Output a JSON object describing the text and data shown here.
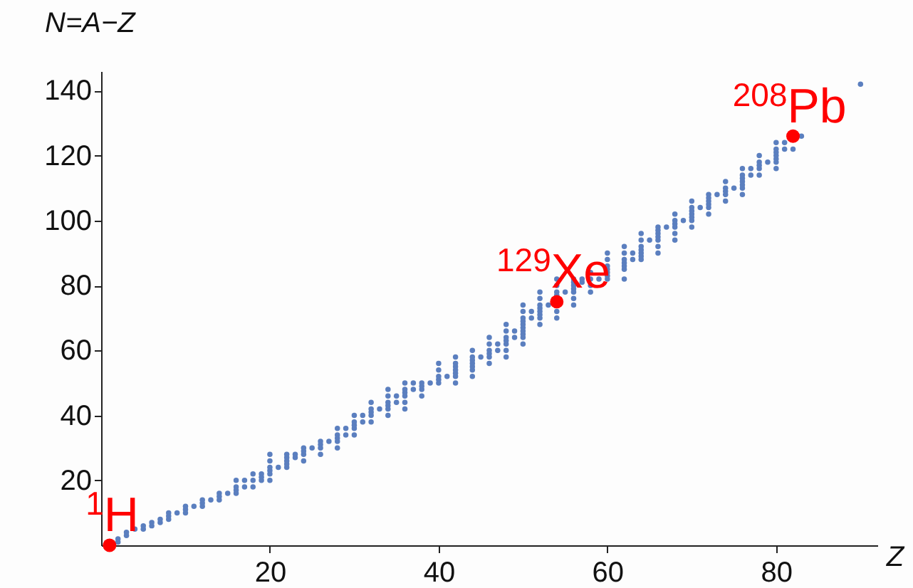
{
  "chart_data": {
    "type": "scatter",
    "xlabel": "Z",
    "ylabel": "N=A−Z",
    "xlim": [
      0,
      92
    ],
    "ylim": [
      0,
      146
    ],
    "xticks": [
      20,
      40,
      60,
      80
    ],
    "yticks": [
      20,
      40,
      60,
      80,
      100,
      120,
      140
    ],
    "grid": false,
    "marker": "circle",
    "series": [
      {
        "color": "#5b7fbf",
        "x": [
          2,
          2,
          3,
          3,
          4,
          5,
          5,
          6,
          6,
          7,
          7,
          8,
          8,
          8,
          9,
          10,
          10,
          10,
          11,
          12,
          12,
          12,
          13,
          14,
          14,
          14,
          15,
          16,
          16,
          16,
          16,
          17,
          17,
          18,
          18,
          18,
          19,
          19,
          19,
          20,
          20,
          20,
          20,
          20,
          20,
          21,
          22,
          22,
          22,
          22,
          22,
          23,
          23,
          24,
          24,
          24,
          24,
          25,
          26,
          26,
          26,
          26,
          27,
          28,
          28,
          28,
          28,
          28,
          29,
          29,
          30,
          30,
          30,
          30,
          30,
          31,
          31,
          32,
          32,
          32,
          32,
          32,
          33,
          34,
          34,
          34,
          34,
          34,
          34,
          35,
          35,
          36,
          36,
          36,
          36,
          36,
          36,
          37,
          37,
          38,
          38,
          38,
          38,
          39,
          40,
          40,
          40,
          40,
          40,
          41,
          42,
          42,
          42,
          42,
          42,
          42,
          42,
          44,
          44,
          44,
          44,
          44,
          44,
          44,
          45,
          46,
          46,
          46,
          46,
          46,
          46,
          47,
          47,
          48,
          48,
          48,
          48,
          48,
          48,
          48,
          49,
          49,
          50,
          50,
          50,
          50,
          50,
          50,
          50,
          50,
          50,
          50,
          51,
          51,
          52,
          52,
          52,
          52,
          52,
          52,
          52,
          52,
          53,
          54,
          54,
          54,
          54,
          54,
          54,
          55,
          56,
          56,
          56,
          56,
          56,
          56,
          56,
          57,
          57,
          58,
          58,
          58,
          58,
          59,
          60,
          60,
          60,
          60,
          60,
          60,
          60,
          62,
          62,
          62,
          62,
          62,
          62,
          62,
          63,
          63,
          64,
          64,
          64,
          64,
          64,
          64,
          64,
          65,
          66,
          66,
          66,
          66,
          66,
          66,
          66,
          67,
          68,
          68,
          68,
          68,
          68,
          68,
          69,
          70,
          70,
          70,
          70,
          70,
          70,
          70,
          71,
          72,
          72,
          72,
          72,
          72,
          72,
          73,
          74,
          74,
          74,
          74,
          74,
          75,
          76,
          76,
          76,
          76,
          76,
          76,
          76,
          77,
          77,
          78,
          78,
          78,
          78,
          78,
          79,
          80,
          80,
          80,
          80,
          80,
          80,
          80,
          81,
          81,
          82,
          83,
          90
        ],
        "values": [
          1,
          2,
          3,
          4,
          5,
          5,
          6,
          6,
          7,
          7,
          8,
          8,
          9,
          10,
          10,
          10,
          11,
          12,
          12,
          12,
          13,
          14,
          14,
          14,
          15,
          16,
          16,
          16,
          17,
          18,
          20,
          18,
          20,
          18,
          20,
          22,
          20,
          21,
          22,
          20,
          22,
          23,
          24,
          26,
          28,
          24,
          24,
          25,
          26,
          27,
          28,
          27,
          28,
          26,
          28,
          29,
          30,
          30,
          28,
          30,
          31,
          32,
          32,
          30,
          32,
          33,
          34,
          36,
          34,
          36,
          34,
          36,
          37,
          38,
          40,
          38,
          40,
          38,
          40,
          41,
          42,
          44,
          42,
          40,
          42,
          43,
          44,
          46,
          48,
          44,
          46,
          42,
          44,
          46,
          47,
          48,
          50,
          48,
          50,
          46,
          48,
          49,
          50,
          50,
          50,
          51,
          52,
          54,
          56,
          52,
          50,
          52,
          53,
          54,
          55,
          56,
          58,
          52,
          54,
          55,
          56,
          57,
          58,
          60,
          58,
          56,
          58,
          59,
          60,
          62,
          64,
          60,
          62,
          58,
          60,
          62,
          63,
          64,
          66,
          68,
          64,
          66,
          62,
          64,
          65,
          66,
          67,
          68,
          69,
          70,
          72,
          74,
          70,
          72,
          68,
          70,
          71,
          72,
          73,
          74,
          76,
          78,
          74,
          70,
          72,
          77,
          78,
          80,
          82,
          78,
          74,
          76,
          78,
          79,
          80,
          81,
          82,
          81,
          82,
          78,
          80,
          82,
          84,
          82,
          82,
          83,
          84,
          85,
          86,
          88,
          90,
          82,
          85,
          86,
          87,
          88,
          90,
          92,
          88,
          90,
          88,
          89,
          90,
          91,
          92,
          94,
          96,
          94,
          90,
          92,
          94,
          95,
          96,
          97,
          98,
          98,
          94,
          96,
          98,
          99,
          100,
          102,
          100,
          98,
          100,
          101,
          102,
          103,
          104,
          106,
          104,
          102,
          104,
          105,
          106,
          107,
          108,
          108,
          106,
          108,
          109,
          110,
          112,
          110,
          108,
          110,
          111,
          112,
          113,
          114,
          116,
          114,
          116,
          114,
          116,
          117,
          118,
          120,
          118,
          116,
          118,
          119,
          120,
          121,
          122,
          124,
          122,
          124,
          122,
          126,
          142
        ]
      },
      {
        "color": "#ff0000",
        "x": [
          1,
          54,
          82
        ],
        "values": [
          0,
          75,
          126
        ]
      }
    ],
    "annotations": [
      {
        "text": "$^{1}$H",
        "x": 1,
        "y": 0
      },
      {
        "text": "$^{129}$Xe",
        "x": 54,
        "y": 75
      },
      {
        "text": "$^{208}$Pb",
        "x": 82,
        "y": 126
      }
    ]
  }
}
